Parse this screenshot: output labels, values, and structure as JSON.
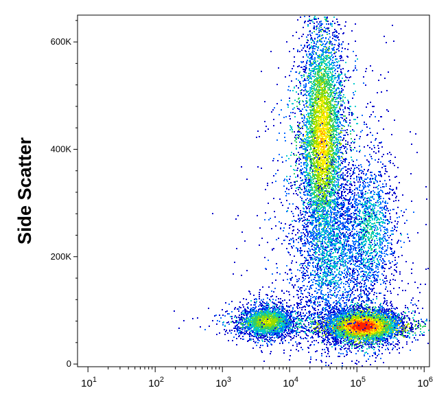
{
  "chart_data": {
    "type": "scatter",
    "title": "",
    "xlabel": "",
    "ylabel": "Side Scatter",
    "x_scale": "log",
    "xlim": [
      7,
      1200000
    ],
    "ylim": [
      -5000,
      650000
    ],
    "x_ticks": [
      {
        "value": 10,
        "base": "10",
        "exp": "1"
      },
      {
        "value": 100,
        "base": "10",
        "exp": "2"
      },
      {
        "value": 1000,
        "base": "10",
        "exp": "3"
      },
      {
        "value": 10000,
        "base": "10",
        "exp": "4"
      },
      {
        "value": 100000,
        "base": "10",
        "exp": "5"
      },
      {
        "value": 1000000,
        "base": "10",
        "exp": "6"
      }
    ],
    "y_ticks": [
      {
        "value": 0,
        "label": "0"
      },
      {
        "value": 200000,
        "label": "200K"
      },
      {
        "value": 400000,
        "label": "400K"
      },
      {
        "value": 600000,
        "label": "600K"
      }
    ],
    "density_colors": [
      "#0000cc",
      "#0066ff",
      "#00cccc",
      "#33cc66",
      "#99dd00",
      "#ffee00",
      "#ff9900",
      "#ff2200"
    ],
    "populations": [
      {
        "name": "",
        "x_center": 30000,
        "y_center": 420000,
        "x_spread_log": 0.16,
        "y_spread": 110000,
        "count": 5200,
        "peak_density": 0.72
      },
      {
        "name": "",
        "x_center": 4500,
        "y_center": 80000,
        "x_spread_log": 0.2,
        "y_spread": 14000,
        "count": 2600,
        "peak_density": 0.62
      },
      {
        "name": "",
        "x_center": 120000,
        "y_center": 72000,
        "x_spread_log": 0.28,
        "y_spread": 15000,
        "count": 5200,
        "peak_density": 1.0
      },
      {
        "name": "",
        "x_center": 150000,
        "y_center": 250000,
        "x_spread_log": 0.2,
        "y_spread": 70000,
        "count": 1500,
        "peak_density": 0.35
      },
      {
        "name": "",
        "x_center": 40000,
        "y_center": 200000,
        "x_spread_log": 0.3,
        "y_spread": 80000,
        "count": 1800,
        "peak_density": 0.3
      }
    ]
  }
}
